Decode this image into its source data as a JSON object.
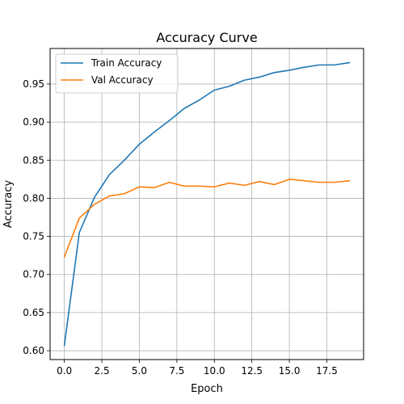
{
  "chart_data": {
    "type": "line",
    "title": "Accuracy Curve",
    "xlabel": "Epoch",
    "ylabel": "Accuracy",
    "x": [
      0,
      1,
      2,
      3,
      4,
      5,
      6,
      7,
      8,
      9,
      10,
      11,
      12,
      13,
      14,
      15,
      16,
      17,
      18,
      19
    ],
    "series": [
      {
        "name": "Train Accuracy",
        "color": "#1f77b4",
        "values": [
          0.607,
          0.755,
          0.801,
          0.831,
          0.85,
          0.871,
          0.887,
          0.902,
          0.918,
          0.929,
          0.942,
          0.947,
          0.955,
          0.959,
          0.965,
          0.968,
          0.972,
          0.975,
          0.975,
          0.978
        ]
      },
      {
        "name": "Val Accuracy",
        "color": "#ff7f0e",
        "values": [
          0.723,
          0.774,
          0.792,
          0.803,
          0.806,
          0.815,
          0.814,
          0.821,
          0.816,
          0.816,
          0.815,
          0.82,
          0.817,
          0.822,
          0.818,
          0.825,
          0.823,
          0.821,
          0.821,
          0.823
        ]
      }
    ],
    "xlim": [
      -0.95,
      19.95
    ],
    "ylim": [
      0.5884,
      0.9966
    ],
    "xticks": [
      0.0,
      2.5,
      5.0,
      7.5,
      10.0,
      12.5,
      15.0,
      17.5
    ],
    "xtick_labels": [
      "0.0",
      "2.5",
      "5.0",
      "7.5",
      "10.0",
      "12.5",
      "15.0",
      "17.5"
    ],
    "yticks": [
      0.6,
      0.65,
      0.7,
      0.75,
      0.8,
      0.85,
      0.9,
      0.95
    ],
    "ytick_labels": [
      "0.60",
      "0.65",
      "0.70",
      "0.75",
      "0.80",
      "0.85",
      "0.90",
      "0.95"
    ],
    "grid": true,
    "legend_position": "top-left"
  }
}
